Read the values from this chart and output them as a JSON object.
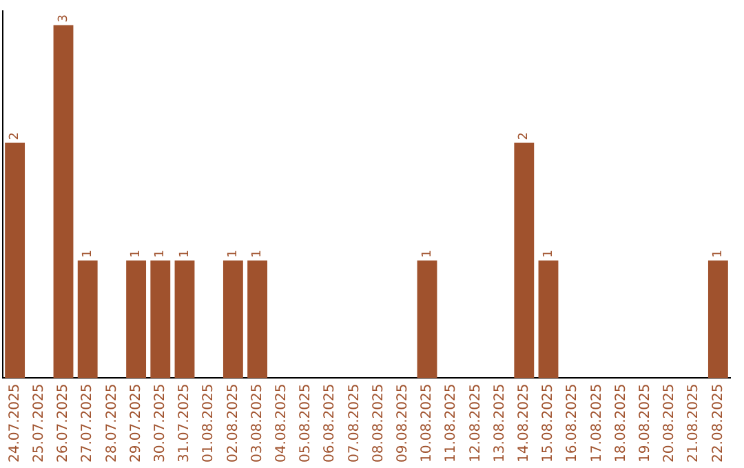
{
  "chart_data": {
    "type": "bar",
    "categories": [
      "24.07.2025",
      "25.07.2025",
      "26.07.2025",
      "27.07.2025",
      "28.07.2025",
      "29.07.2025",
      "30.07.2025",
      "31.07.2025",
      "01.08.2025",
      "02.08.2025",
      "03.08.2025",
      "04.08.2025",
      "05.08.2025",
      "06.08.2025",
      "07.08.2025",
      "08.08.2025",
      "09.08.2025",
      "10.08.2025",
      "11.08.2025",
      "12.08.2025",
      "13.08.2025",
      "14.08.2025",
      "15.08.2025",
      "16.08.2025",
      "17.08.2025",
      "18.08.2025",
      "19.08.2025",
      "20.08.2025",
      "21.08.2025",
      "22.08.2025"
    ],
    "values": [
      2,
      0,
      3,
      1,
      0,
      1,
      1,
      1,
      0,
      1,
      1,
      0,
      0,
      0,
      0,
      0,
      0,
      1,
      0,
      0,
      0,
      2,
      1,
      0,
      0,
      0,
      0,
      0,
      0,
      1
    ],
    "value_labels": [
      "2",
      null,
      "3",
      "1",
      null,
      "1",
      "1",
      "1",
      null,
      "1",
      "1",
      null,
      null,
      null,
      null,
      null,
      null,
      "1",
      null,
      null,
      null,
      "2",
      "1",
      null,
      null,
      null,
      null,
      null,
      null,
      "1"
    ],
    "color": "#a0522d",
    "grid": false,
    "legend": false,
    "tick_labels": "x"
  }
}
